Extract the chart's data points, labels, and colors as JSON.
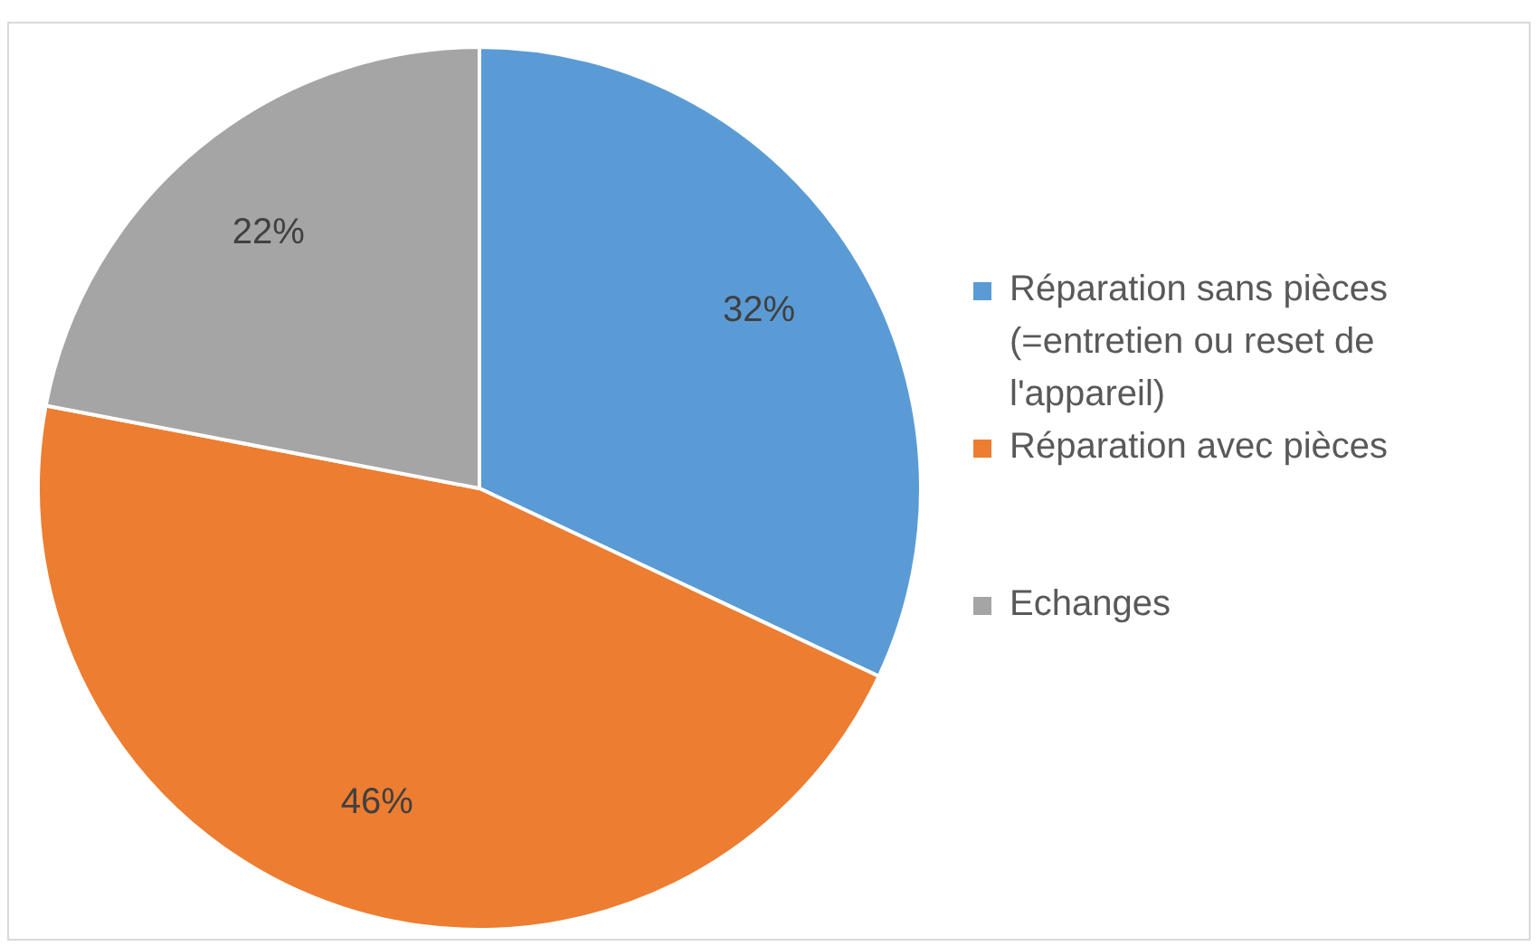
{
  "chart_data": {
    "type": "pie",
    "categories": [
      "Réparation sans pièces (=entretien ou reset de l'appareil)",
      "Réparation avec pièces",
      "Echanges"
    ],
    "values": [
      32,
      46,
      22
    ],
    "colors": [
      "#5b9bd5",
      "#ed7d31",
      "#a5a5a5"
    ],
    "value_labels": [
      "32%",
      "46%",
      "22%"
    ],
    "legend": "right"
  }
}
